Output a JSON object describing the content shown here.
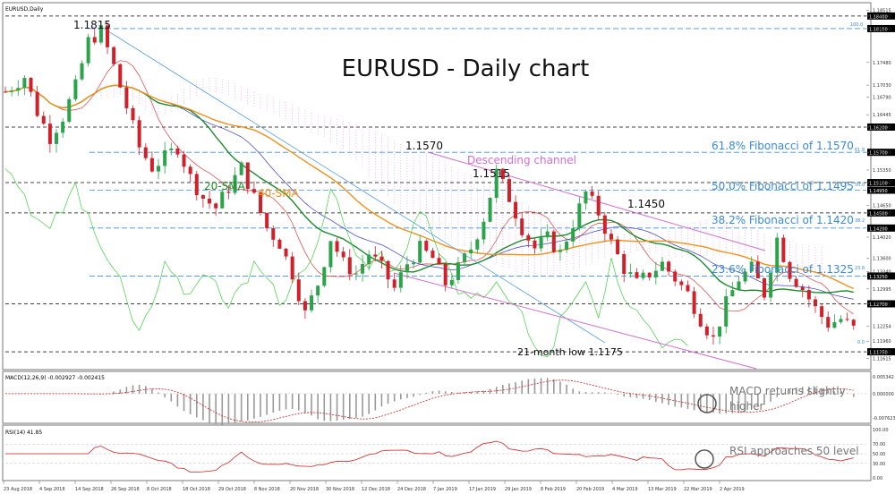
{
  "panels": {
    "main": {
      "header": "EURUSD,Daily"
    },
    "macd": {
      "header": "MACD(12,26,9) -0.002927 -0.002415"
    },
    "rsi": {
      "header": "RSI(14) 41.85"
    }
  },
  "annotations": {
    "title": "EURUSD - Daily chart",
    "high_1815": "1.1815",
    "high_1570": "1.1570",
    "high_1515": "1.1515",
    "high_1450": "1.1450",
    "low_label": "21-month low 1.1175",
    "channel": "Descending channel",
    "sma20": "20-SMA",
    "sma40": "40-SMA",
    "fib_618": "61.8% Fibonacci of 1.1570",
    "fib_500": "50.0% Fibonacci of 1.1495",
    "fib_382": "38.2% Fibonacci of 1.1420",
    "fib_236": "23.6% Fibonacci of 1.1325",
    "macd_note_1": "MACD returns slightly",
    "macd_note_2": "higher",
    "rsi_note": "RSI approaches 50 level"
  },
  "fib_small_labels": {
    "f100": "100.0",
    "f618": "61.8",
    "f500": "50.0",
    "f382": "38.2",
    "f236": "23.6",
    "f0": "0.0"
  },
  "chart_data": {
    "type": "line",
    "title": "EURUSD - Daily chart",
    "date_axis": [
      "23 Aug 2018",
      "4 Sep 2018",
      "14 Sep 2018",
      "26 Sep 2018",
      "8 Oct 2018",
      "18 Oct 2018",
      "29 Oct 2018",
      "8 Nov 2018",
      "20 Nov 2018",
      "30 Nov 2018",
      "12 Dec 2018",
      "24 Dec 2018",
      "7 Jan 2019",
      "17 Jan 2019",
      "29 Jan 2019",
      "8 Feb 2019",
      "20 Feb 2019",
      "4 Mar 2019",
      "13 Mar 2019",
      "22 Mar 2019",
      "2 Apr 2019"
    ],
    "price_axis": {
      "ticks": [
        "1.18515",
        "1.18400",
        "1.18150",
        "1.17480",
        "1.17030",
        "1.16790",
        "1.16445",
        "1.16200",
        "1.15700",
        "1.15350",
        "1.15100",
        "1.14650",
        "1.14500",
        "1.14020",
        "1.13600",
        "1.13340",
        "1.12995",
        "1.12700",
        "1.12254",
        "1.11960",
        "1.11750",
        "1.11615"
      ],
      "ylim": [
        1.1145,
        1.1861
      ]
    },
    "key_levels": [
      {
        "label": "1.18400",
        "value": 1.184,
        "style": "dashed-gray"
      },
      {
        "label": "1.18150",
        "value": 1.1815,
        "style": "dashed-blue"
      },
      {
        "label": "1.16200",
        "value": 1.162,
        "style": "dashed-gray"
      },
      {
        "label": "1.15700",
        "value": 1.157,
        "style": "dashed-blue"
      },
      {
        "label": "1.15100",
        "value": 1.151,
        "style": "dashed-gray"
      },
      {
        "label": "1.14950",
        "value": 1.1495,
        "style": "dashed-blue"
      },
      {
        "label": "1.14500",
        "value": 1.145,
        "style": "dashed-gray"
      },
      {
        "label": "1.14200",
        "value": 1.142,
        "style": "dashed-blue"
      },
      {
        "label": "1.13250",
        "value": 1.1325,
        "style": "dashed-blue"
      },
      {
        "label": "1.12700",
        "value": 1.127,
        "style": "dashed-gray"
      },
      {
        "label": "1.11750",
        "value": 1.1175,
        "style": "dashed-gray"
      }
    ],
    "price_path": [
      {
        "x": 0,
        "y": 1.169
      },
      {
        "x": 3,
        "y": 1.172
      },
      {
        "x": 5,
        "y": 1.165
      },
      {
        "x": 7,
        "y": 1.16
      },
      {
        "x": 9,
        "y": 1.164
      },
      {
        "x": 11,
        "y": 1.17
      },
      {
        "x": 13,
        "y": 1.179
      },
      {
        "x": 15,
        "y": 1.181
      },
      {
        "x": 17,
        "y": 1.174
      },
      {
        "x": 19,
        "y": 1.166
      },
      {
        "x": 21,
        "y": 1.158
      },
      {
        "x": 23,
        "y": 1.154
      },
      {
        "x": 25,
        "y": 1.156
      },
      {
        "x": 27,
        "y": 1.158
      },
      {
        "x": 29,
        "y": 1.152
      },
      {
        "x": 31,
        "y": 1.148
      },
      {
        "x": 33,
        "y": 1.146
      },
      {
        "x": 35,
        "y": 1.15
      },
      {
        "x": 37,
        "y": 1.154
      },
      {
        "x": 39,
        "y": 1.148
      },
      {
        "x": 41,
        "y": 1.142
      },
      {
        "x": 43,
        "y": 1.139
      },
      {
        "x": 45,
        "y": 1.133
      },
      {
        "x": 47,
        "y": 1.125
      },
      {
        "x": 49,
        "y": 1.131
      },
      {
        "x": 51,
        "y": 1.14
      },
      {
        "x": 53,
        "y": 1.135
      },
      {
        "x": 55,
        "y": 1.133
      },
      {
        "x": 57,
        "y": 1.137
      },
      {
        "x": 59,
        "y": 1.134
      },
      {
        "x": 61,
        "y": 1.13
      },
      {
        "x": 63,
        "y": 1.135
      },
      {
        "x": 65,
        "y": 1.138
      },
      {
        "x": 67,
        "y": 1.136
      },
      {
        "x": 69,
        "y": 1.131
      },
      {
        "x": 71,
        "y": 1.134
      },
      {
        "x": 73,
        "y": 1.138
      },
      {
        "x": 75,
        "y": 1.144
      },
      {
        "x": 77,
        "y": 1.153
      },
      {
        "x": 79,
        "y": 1.148
      },
      {
        "x": 81,
        "y": 1.142
      },
      {
        "x": 83,
        "y": 1.138
      },
      {
        "x": 85,
        "y": 1.14
      },
      {
        "x": 87,
        "y": 1.137
      },
      {
        "x": 89,
        "y": 1.143
      },
      {
        "x": 91,
        "y": 1.149
      },
      {
        "x": 93,
        "y": 1.145
      },
      {
        "x": 95,
        "y": 1.139
      },
      {
        "x": 97,
        "y": 1.134
      },
      {
        "x": 99,
        "y": 1.131
      },
      {
        "x": 101,
        "y": 1.133
      },
      {
        "x": 103,
        "y": 1.135
      },
      {
        "x": 105,
        "y": 1.132
      },
      {
        "x": 107,
        "y": 1.129
      },
      {
        "x": 109,
        "y": 1.124
      },
      {
        "x": 111,
        "y": 1.12
      },
      {
        "x": 113,
        "y": 1.127
      },
      {
        "x": 115,
        "y": 1.132
      },
      {
        "x": 117,
        "y": 1.134
      },
      {
        "x": 119,
        "y": 1.129
      },
      {
        "x": 121,
        "y": 1.14
      },
      {
        "x": 123,
        "y": 1.133
      },
      {
        "x": 125,
        "y": 1.13
      },
      {
        "x": 127,
        "y": 1.126
      },
      {
        "x": 129,
        "y": 1.123
      },
      {
        "x": 131,
        "y": 1.124
      },
      {
        "x": 133,
        "y": 1.122
      }
    ],
    "x_range": [
      0,
      135
    ],
    "macd": {
      "title": "MACD(12,26,9) -0.002927 -0.002415",
      "ticks": [
        "0.005342",
        "0.000000",
        "-0.007623"
      ],
      "ylim": [
        -0.0085,
        0.0062
      ]
    },
    "rsi": {
      "title": "RSI(14) 41.85",
      "ticks": [
        "100.00",
        "70.00",
        "50.00",
        "30.00",
        "0.00"
      ],
      "ylim": [
        0,
        100
      ]
    },
    "colors": {
      "bull": "#2aa34a",
      "bear": "#d0202a",
      "sma20": "#1e8a2e",
      "sma40": "#f0901a",
      "tenkan": "#e04040",
      "kijun": "#3a3ad0",
      "chikou": "#40d040",
      "cloud": "#e070e0",
      "fib": "#4090e0",
      "channel": "#d070d0"
    }
  }
}
